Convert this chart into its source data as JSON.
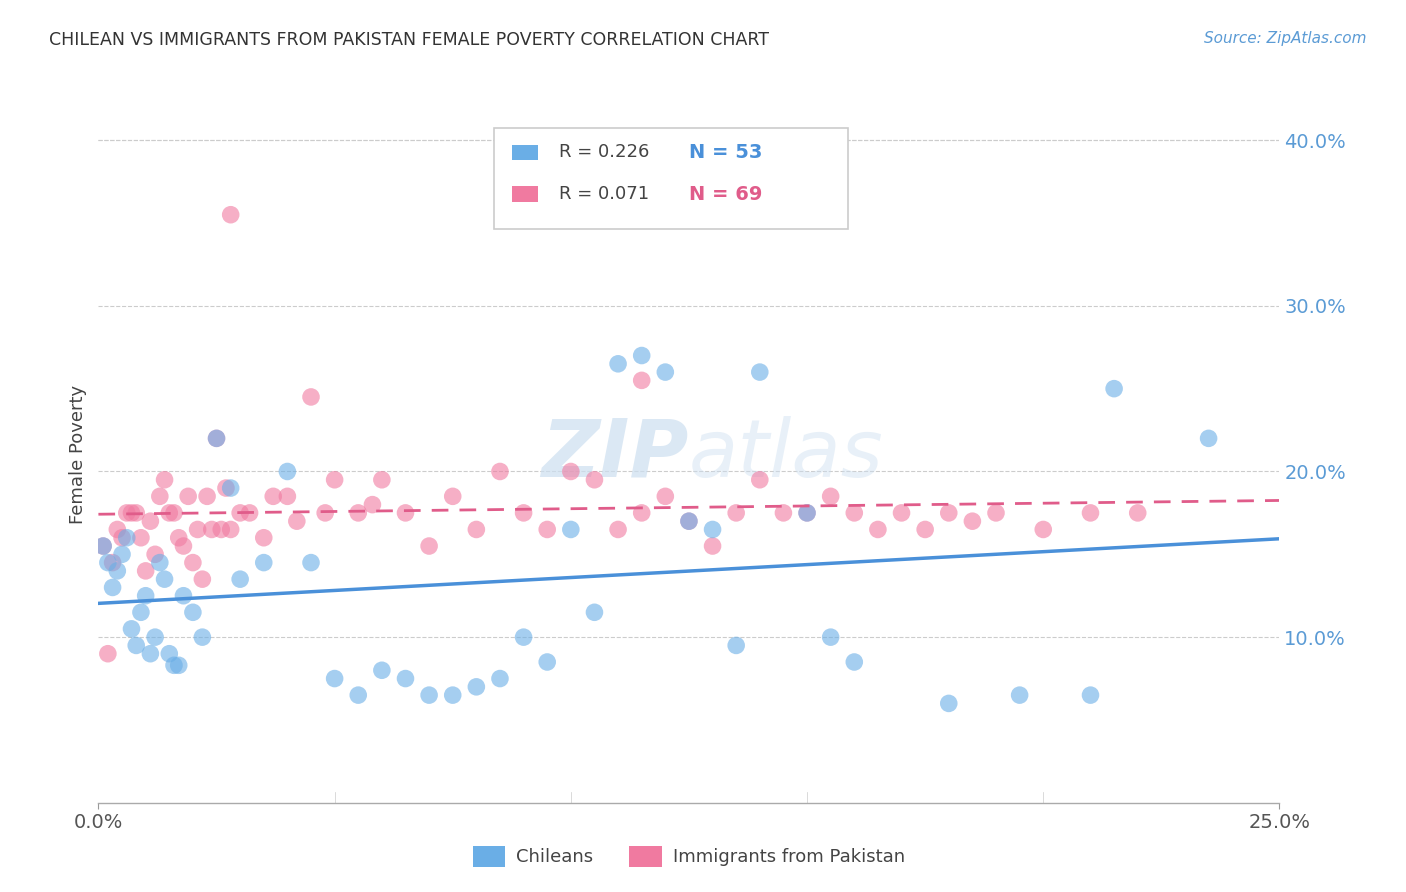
{
  "title": "CHILEAN VS IMMIGRANTS FROM PAKISTAN FEMALE POVERTY CORRELATION CHART",
  "source": "Source: ZipAtlas.com",
  "ylabel": "Female Poverty",
  "yticks": [
    0.0,
    0.1,
    0.2,
    0.3,
    0.4
  ],
  "ytick_labels": [
    "",
    "10.0%",
    "20.0%",
    "30.0%",
    "40.0%"
  ],
  "xlim": [
    0.0,
    0.25
  ],
  "ylim": [
    0.0,
    0.42
  ],
  "watermark_zip": "ZIP",
  "watermark_atlas": "atlas",
  "legend1_r": "R = 0.226",
  "legend1_n": "N = 53",
  "legend2_r": "R = 0.071",
  "legend2_n": "N = 69",
  "legend_label1": "Chileans",
  "legend_label2": "Immigrants from Pakistan",
  "blue_color": "#6aaee6",
  "pink_color": "#f07aa0",
  "blue_line_color": "#4a90d9",
  "pink_line_color": "#e05c8a",
  "title_color": "#333333",
  "source_color": "#5b9bd5",
  "ytick_color": "#5b9bd5",
  "chilean_x": [
    0.001,
    0.002,
    0.003,
    0.004,
    0.005,
    0.006,
    0.007,
    0.008,
    0.009,
    0.01,
    0.011,
    0.012,
    0.013,
    0.014,
    0.015,
    0.016,
    0.017,
    0.018,
    0.02,
    0.022,
    0.025,
    0.028,
    0.03,
    0.035,
    0.04,
    0.045,
    0.05,
    0.055,
    0.06,
    0.065,
    0.07,
    0.075,
    0.08,
    0.085,
    0.09,
    0.095,
    0.1,
    0.105,
    0.11,
    0.115,
    0.12,
    0.125,
    0.13,
    0.135,
    0.14,
    0.15,
    0.155,
    0.16,
    0.18,
    0.195,
    0.21,
    0.215,
    0.235
  ],
  "chilean_y": [
    0.155,
    0.145,
    0.13,
    0.14,
    0.15,
    0.16,
    0.105,
    0.095,
    0.115,
    0.125,
    0.09,
    0.1,
    0.145,
    0.135,
    0.09,
    0.083,
    0.083,
    0.125,
    0.115,
    0.1,
    0.22,
    0.19,
    0.135,
    0.145,
    0.2,
    0.145,
    0.075,
    0.065,
    0.08,
    0.075,
    0.065,
    0.065,
    0.07,
    0.075,
    0.1,
    0.085,
    0.165,
    0.115,
    0.265,
    0.27,
    0.26,
    0.17,
    0.165,
    0.095,
    0.26,
    0.175,
    0.1,
    0.085,
    0.06,
    0.065,
    0.065,
    0.25,
    0.22
  ],
  "pakistan_x": [
    0.001,
    0.002,
    0.003,
    0.004,
    0.005,
    0.006,
    0.007,
    0.008,
    0.009,
    0.01,
    0.011,
    0.012,
    0.013,
    0.014,
    0.015,
    0.016,
    0.017,
    0.018,
    0.019,
    0.02,
    0.021,
    0.022,
    0.023,
    0.024,
    0.025,
    0.026,
    0.027,
    0.028,
    0.03,
    0.032,
    0.035,
    0.037,
    0.04,
    0.042,
    0.045,
    0.048,
    0.05,
    0.055,
    0.058,
    0.06,
    0.065,
    0.07,
    0.075,
    0.08,
    0.085,
    0.09,
    0.095,
    0.1,
    0.105,
    0.11,
    0.115,
    0.12,
    0.125,
    0.13,
    0.135,
    0.14,
    0.145,
    0.15,
    0.155,
    0.16,
    0.165,
    0.17,
    0.175,
    0.18,
    0.185,
    0.19,
    0.2,
    0.21,
    0.22
  ],
  "pakistan_y": [
    0.155,
    0.09,
    0.145,
    0.165,
    0.16,
    0.175,
    0.175,
    0.175,
    0.16,
    0.14,
    0.17,
    0.15,
    0.185,
    0.195,
    0.175,
    0.175,
    0.16,
    0.155,
    0.185,
    0.145,
    0.165,
    0.135,
    0.185,
    0.165,
    0.22,
    0.165,
    0.19,
    0.165,
    0.175,
    0.175,
    0.16,
    0.185,
    0.185,
    0.17,
    0.245,
    0.175,
    0.195,
    0.175,
    0.18,
    0.195,
    0.175,
    0.155,
    0.185,
    0.165,
    0.2,
    0.175,
    0.165,
    0.2,
    0.195,
    0.165,
    0.175,
    0.185,
    0.17,
    0.155,
    0.175,
    0.195,
    0.175,
    0.175,
    0.185,
    0.175,
    0.165,
    0.175,
    0.165,
    0.175,
    0.17,
    0.175,
    0.165,
    0.175,
    0.175
  ],
  "pakistan_outlier_x": [
    0.028
  ],
  "pakistan_outlier_y": [
    0.355
  ],
  "pakistan_25_x": [
    0.115
  ],
  "pakistan_25_y": [
    0.255
  ]
}
